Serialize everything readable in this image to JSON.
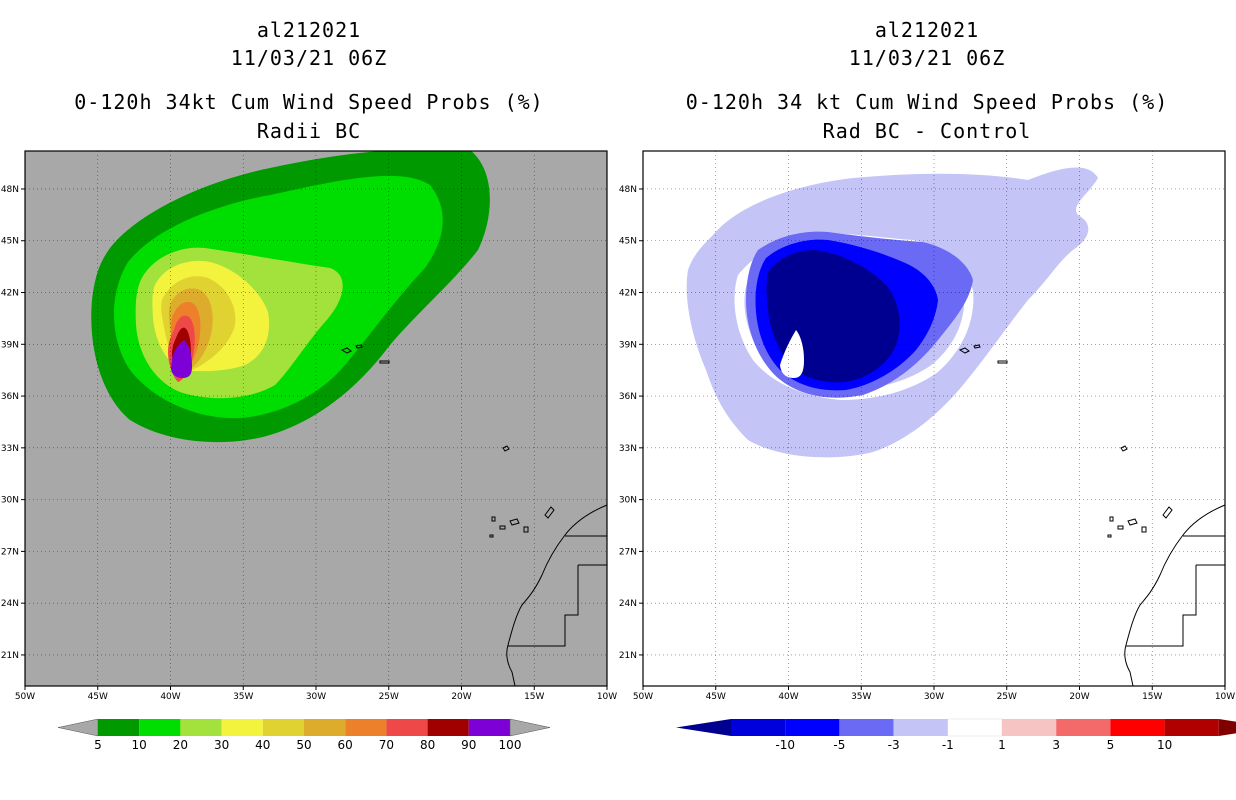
{
  "left": {
    "storm_id": "al212021",
    "datetime": "11/03/21 06Z",
    "title": "0-120h 34kt Cum Wind Speed Probs (%)",
    "subtitle": "Radii BC",
    "background_color": "#a8a8a8",
    "colorbar": {
      "colors": [
        "#009a00",
        "#00dd00",
        "#a3e23c",
        "#f3f33e",
        "#e0d230",
        "#deac2c",
        "#ed802a",
        "#ee4848",
        "#a00000",
        "#7d00d6"
      ],
      "labels": [
        "5",
        "10",
        "20",
        "30",
        "40",
        "50",
        "60",
        "70",
        "80",
        "90",
        "100"
      ],
      "extend_color": "#a8a8a8"
    }
  },
  "right": {
    "storm_id": "al212021",
    "datetime": "11/03/21 06Z",
    "title": "0-120h 34 kt Cum Wind Speed Probs (%)",
    "subtitle": "Rad BC - Control",
    "background_color": "#ffffff",
    "colorbar": {
      "colors": [
        "#0000dd",
        "#0000ff",
        "#6a6af4",
        "#c4c4f7",
        "#ffffff",
        "#f7c4c4",
        "#f46a6a",
        "#ff0000",
        "#b00000"
      ],
      "labels": [
        "-10",
        "-5",
        "-3",
        "-1",
        "1",
        "3",
        "5",
        "10"
      ],
      "low_extend_color": "#000090",
      "high_extend_color": "#800000"
    }
  },
  "map": {
    "lon_labels": [
      "50W",
      "45W",
      "40W",
      "35W",
      "30W",
      "25W",
      "20W",
      "15W",
      "10W"
    ],
    "lat_labels": [
      "48N",
      "45N",
      "42N",
      "39N",
      "36N",
      "33N",
      "30N",
      "27N",
      "24N",
      "21N"
    ],
    "lon_values": [
      -50,
      -45,
      -40,
      -35,
      -30,
      -25,
      -20,
      -15,
      -10
    ],
    "lat_values": [
      48,
      45,
      42,
      39,
      36,
      33,
      30,
      27,
      24,
      21
    ],
    "lon_range": [
      -50,
      -10
    ],
    "lat_range": [
      19.2,
      50.2
    ]
  }
}
